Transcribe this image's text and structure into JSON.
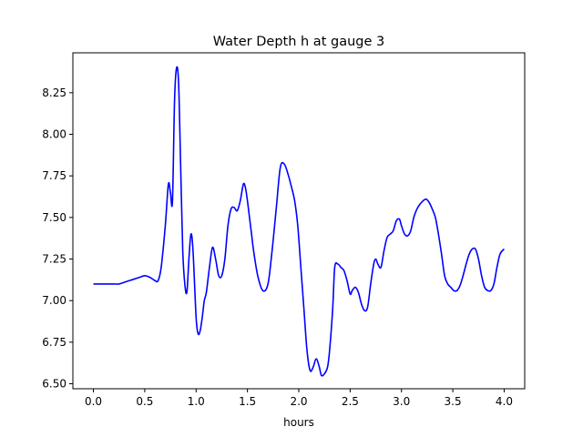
{
  "chart_data": {
    "type": "line",
    "title": "Water Depth h at gauge 3",
    "xlabel": "hours",
    "ylabel": "",
    "xlim": [
      -0.2,
      4.2
    ],
    "ylim": [
      6.47,
      8.49
    ],
    "xticks": [
      0.0,
      0.5,
      1.0,
      1.5,
      2.0,
      2.5,
      3.0,
      3.5,
      4.0
    ],
    "xtick_labels": [
      "0.0",
      "0.5",
      "1.0",
      "1.5",
      "2.0",
      "2.5",
      "3.0",
      "3.5",
      "4.0"
    ],
    "yticks": [
      6.5,
      6.75,
      7.0,
      7.25,
      7.5,
      7.75,
      8.0,
      8.25
    ],
    "ytick_labels": [
      "6.50",
      "6.75",
      "7.00",
      "7.25",
      "7.50",
      "7.75",
      "8.00",
      "8.25"
    ],
    "grid": false,
    "series": [
      {
        "color": "#0000ff",
        "x": [
          0.0,
          0.1,
          0.2,
          0.25,
          0.3,
          0.35,
          0.4,
          0.45,
          0.5,
          0.55,
          0.6,
          0.63,
          0.66,
          0.7,
          0.73,
          0.75,
          0.77,
          0.79,
          0.81,
          0.83,
          0.85,
          0.87,
          0.89,
          0.91,
          0.93,
          0.95,
          0.97,
          1.0,
          1.02,
          1.04,
          1.06,
          1.08,
          1.1,
          1.13,
          1.16,
          1.19,
          1.22,
          1.25,
          1.28,
          1.31,
          1.34,
          1.37,
          1.4,
          1.43,
          1.46,
          1.48,
          1.5,
          1.52,
          1.54,
          1.56,
          1.6,
          1.65,
          1.7,
          1.74,
          1.78,
          1.82,
          1.86,
          1.9,
          1.93,
          1.96,
          1.99,
          2.02,
          2.05,
          2.08,
          2.11,
          2.14,
          2.17,
          2.2,
          2.22,
          2.25,
          2.28,
          2.3,
          2.33,
          2.35,
          2.38,
          2.41,
          2.44,
          2.47,
          2.5,
          2.52,
          2.55,
          2.58,
          2.61,
          2.64,
          2.67,
          2.7,
          2.73,
          2.75,
          2.77,
          2.8,
          2.83,
          2.86,
          2.89,
          2.92,
          2.95,
          2.98,
          3.0,
          3.03,
          3.06,
          3.09,
          3.12,
          3.15,
          3.18,
          3.21,
          3.24,
          3.27,
          3.3,
          3.33,
          3.36,
          3.39,
          3.42,
          3.45,
          3.48,
          3.51,
          3.54,
          3.57,
          3.6,
          3.63,
          3.66,
          3.69,
          3.72,
          3.75,
          3.78,
          3.81,
          3.84,
          3.87,
          3.9,
          3.93,
          3.96,
          4.0
        ],
        "y": [
          7.1,
          7.1,
          7.1,
          7.1,
          7.11,
          7.12,
          7.13,
          7.14,
          7.15,
          7.14,
          7.12,
          7.12,
          7.2,
          7.45,
          7.7,
          7.65,
          7.6,
          8.2,
          8.4,
          8.3,
          7.8,
          7.3,
          7.1,
          7.05,
          7.25,
          7.4,
          7.3,
          6.9,
          6.8,
          6.82,
          6.9,
          7.0,
          7.05,
          7.2,
          7.32,
          7.25,
          7.15,
          7.15,
          7.25,
          7.45,
          7.55,
          7.56,
          7.54,
          7.6,
          7.7,
          7.68,
          7.6,
          7.5,
          7.4,
          7.3,
          7.15,
          7.06,
          7.1,
          7.3,
          7.55,
          7.8,
          7.82,
          7.75,
          7.68,
          7.6,
          7.45,
          7.2,
          6.95,
          6.7,
          6.58,
          6.6,
          6.65,
          6.6,
          6.55,
          6.56,
          6.6,
          6.7,
          6.95,
          7.2,
          7.22,
          7.2,
          7.18,
          7.12,
          7.04,
          7.06,
          7.08,
          7.05,
          6.98,
          6.94,
          6.96,
          7.1,
          7.22,
          7.25,
          7.22,
          7.2,
          7.3,
          7.38,
          7.4,
          7.42,
          7.48,
          7.49,
          7.45,
          7.4,
          7.39,
          7.42,
          7.5,
          7.55,
          7.58,
          7.6,
          7.61,
          7.59,
          7.55,
          7.5,
          7.4,
          7.28,
          7.15,
          7.1,
          7.08,
          7.06,
          7.06,
          7.09,
          7.15,
          7.22,
          7.28,
          7.31,
          7.31,
          7.25,
          7.15,
          7.08,
          7.06,
          7.06,
          7.1,
          7.2,
          7.28,
          7.31
        ]
      }
    ]
  }
}
